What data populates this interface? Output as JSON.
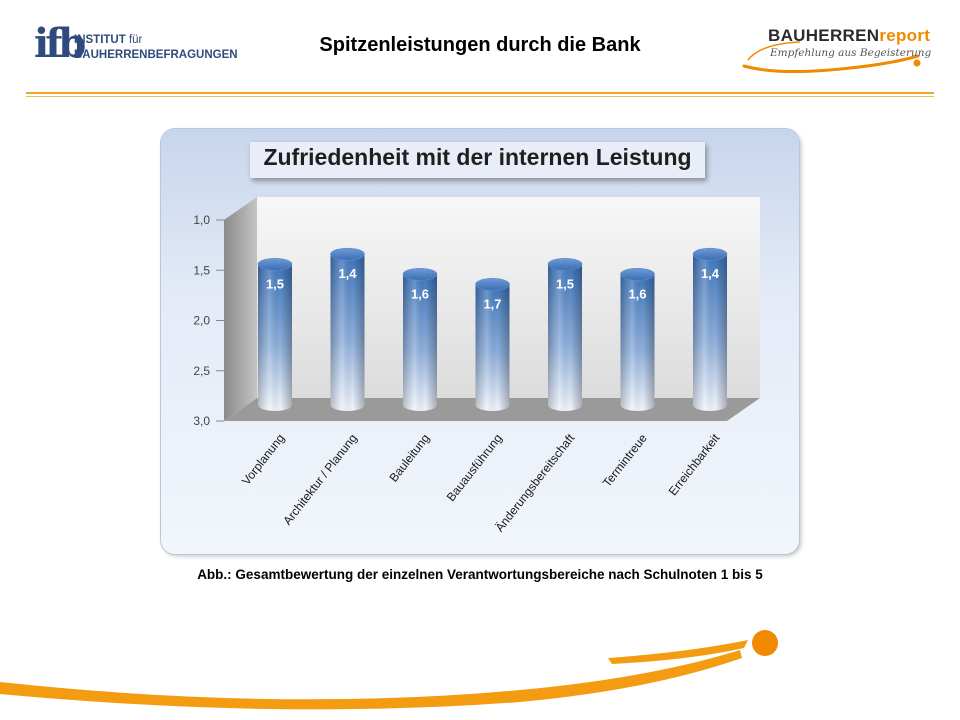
{
  "header": {
    "left_logo": {
      "mark": "ifb",
      "line1": "INSTITUT",
      "line1_small": "für",
      "line2": "BAUHERRENBEFRAGUNGEN"
    },
    "title": "Spitzenleistungen durch die Bank",
    "right_logo": {
      "name_dark": "BAUHERREN",
      "name_orange": "report",
      "tagline": "Empfehlung aus Begeisterung"
    }
  },
  "chart_data": {
    "type": "bar",
    "title": "Zufriedenheit mit der internen Leistung",
    "categories": [
      "Vorplanung",
      "Architektur / Planung",
      "Bauleitung",
      "Bauausführung",
      "Änderungsbereitschaft",
      "Termintreue",
      "Erreichbarkeit"
    ],
    "values": [
      1.5,
      1.4,
      1.6,
      1.7,
      1.5,
      1.6,
      1.4
    ],
    "value_labels": [
      "1,5",
      "1,4",
      "1,6",
      "1,7",
      "1,5",
      "1,6",
      "1,4"
    ],
    "y_ticks": [
      "1,0",
      "1,5",
      "2,0",
      "2,5",
      "3,0"
    ],
    "y_tick_values": [
      1.0,
      1.5,
      2.0,
      2.5,
      3.0
    ],
    "ylim": [
      3.0,
      1.0
    ],
    "y_inverted": true,
    "style": "3d-cylinder",
    "colors": {
      "bar_top": "#3f76bd",
      "bar_bottom": "#f2f6fd",
      "wall": "#e9e9e9",
      "floor": "#9a9a9a"
    }
  },
  "caption": "Abb.: Gesamtbewertung der einzelnen Verantwortungsbereiche nach Schulnoten 1 bis 5",
  "colors": {
    "accent_orange": "#f18a00",
    "brand_blue": "#2f4a7c"
  }
}
